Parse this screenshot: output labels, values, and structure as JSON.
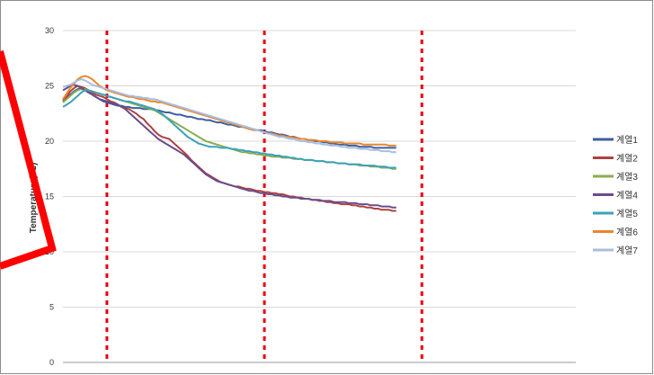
{
  "chart_data": {
    "type": "line",
    "title": "",
    "xlabel": "",
    "ylabel": "Temperature(℃)",
    "ylim": [
      0,
      30
    ],
    "yticks": [
      0,
      5,
      10,
      15,
      20,
      25,
      30
    ],
    "grid": "horizontal",
    "legend": "right",
    "x": [
      0,
      1,
      2,
      3,
      4,
      5,
      6,
      7,
      8,
      9,
      10,
      11,
      12,
      13,
      14,
      15,
      16,
      17,
      18,
      19,
      20,
      21,
      22,
      23,
      24,
      25,
      26,
      27,
      28,
      29,
      30,
      31,
      32,
      33,
      34,
      35,
      36,
      37,
      38,
      39,
      40,
      41,
      42,
      43,
      44,
      45,
      46,
      47,
      48,
      49,
      50,
      51,
      52,
      53,
      54,
      55,
      56,
      57,
      58,
      59,
      60,
      61,
      62,
      63,
      64,
      65,
      66,
      67,
      68,
      69,
      70,
      71,
      72,
      73,
      74,
      75,
      76,
      77,
      78,
      79,
      80,
      81,
      82,
      83,
      84,
      85,
      86,
      87,
      88,
      89,
      90,
      91
    ],
    "vertical_markers": [
      12,
      55,
      98
    ],
    "series": [
      {
        "name": "계열1",
        "color": "#3c5f9e",
        "values": [
          23.7,
          23.9,
          24.2,
          24.5,
          24.7,
          24.8,
          24.6,
          24.4,
          24.2,
          24.0,
          23.8,
          23.6,
          23.5,
          23.4,
          23.3,
          23.2,
          23.2,
          23.1,
          23.1,
          23.0,
          23.0,
          23.0,
          22.9,
          22.9,
          22.9,
          22.8,
          22.8,
          22.7,
          22.6,
          22.6,
          22.5,
          22.4,
          22.4,
          22.3,
          22.2,
          22.2,
          22.1,
          22.0,
          22.0,
          21.9,
          21.9,
          21.8,
          21.7,
          21.7,
          21.6,
          21.5,
          21.5,
          21.4,
          21.3,
          21.3,
          21.2,
          21.1,
          21.1,
          21.0,
          21.0,
          20.9,
          20.8,
          20.8,
          20.7,
          20.6,
          20.6,
          20.5,
          20.4,
          20.4,
          20.3,
          20.2,
          20.2,
          20.1,
          20.1,
          20.0,
          20.0,
          19.9,
          19.9,
          19.8,
          19.8,
          19.7,
          19.7,
          19.7,
          19.6,
          19.6,
          19.6,
          19.5,
          19.5,
          19.5,
          19.5,
          19.4,
          19.4,
          19.4,
          19.4,
          19.4,
          19.4,
          19.4
        ]
      },
      {
        "name": "계열2",
        "color": "#b0413e",
        "values": [
          23.6,
          24.0,
          24.5,
          24.8,
          25.0,
          24.9,
          24.8,
          24.6,
          24.4,
          24.2,
          24.1,
          24.0,
          23.8,
          23.6,
          23.5,
          23.3,
          23.1,
          23.0,
          22.9,
          22.7,
          22.5,
          22.2,
          22.0,
          21.6,
          21.3,
          20.9,
          20.6,
          20.4,
          20.3,
          20.2,
          19.9,
          19.6,
          19.3,
          19.0,
          18.7,
          18.3,
          18.0,
          17.7,
          17.4,
          17.1,
          16.9,
          16.7,
          16.5,
          16.3,
          16.2,
          16.1,
          16.0,
          15.9,
          15.9,
          15.8,
          15.7,
          15.7,
          15.6,
          15.5,
          15.5,
          15.4,
          15.4,
          15.3,
          15.3,
          15.2,
          15.2,
          15.1,
          15.0,
          15.0,
          14.9,
          14.9,
          14.8,
          14.8,
          14.7,
          14.7,
          14.6,
          14.6,
          14.5,
          14.5,
          14.4,
          14.4,
          14.3,
          14.3,
          14.3,
          14.2,
          14.2,
          14.1,
          14.1,
          14.0,
          14.0,
          13.9,
          13.9,
          13.8,
          13.8,
          13.8,
          13.7,
          13.7
        ]
      },
      {
        "name": "계열3",
        "color": "#8aad4f",
        "values": [
          23.5,
          23.8,
          24.1,
          24.4,
          24.6,
          24.7,
          24.7,
          24.6,
          24.5,
          24.4,
          24.3,
          24.2,
          24.1,
          24.0,
          23.9,
          23.8,
          23.7,
          23.6,
          23.5,
          23.4,
          23.3,
          23.2,
          23.1,
          23.0,
          22.9,
          22.8,
          22.6,
          22.4,
          22.2,
          22.0,
          21.8,
          21.6,
          21.4,
          21.2,
          21.0,
          20.8,
          20.6,
          20.4,
          20.2,
          20.0,
          19.9,
          19.8,
          19.7,
          19.6,
          19.5,
          19.4,
          19.3,
          19.2,
          19.1,
          19.0,
          19.0,
          18.9,
          18.9,
          18.8,
          18.8,
          18.7,
          18.7,
          18.6,
          18.6,
          18.6,
          18.5,
          18.5,
          18.5,
          18.4,
          18.4,
          18.4,
          18.3,
          18.3,
          18.3,
          18.2,
          18.2,
          18.2,
          18.1,
          18.1,
          18.1,
          18.0,
          18.0,
          18.0,
          17.9,
          17.9,
          17.9,
          17.8,
          17.8,
          17.8,
          17.7,
          17.7,
          17.7,
          17.6,
          17.6,
          17.6,
          17.5,
          17.5
        ]
      },
      {
        "name": "계열4",
        "color": "#6a4c8c",
        "values": [
          24.6,
          24.8,
          25.0,
          25.1,
          25.0,
          24.8,
          24.6,
          24.4,
          24.2,
          24.0,
          23.8,
          23.7,
          23.6,
          23.5,
          23.4,
          23.3,
          23.1,
          22.9,
          22.6,
          22.3,
          22.0,
          21.7,
          21.4,
          21.1,
          20.8,
          20.5,
          20.2,
          20.0,
          19.8,
          19.6,
          19.4,
          19.2,
          19.0,
          18.8,
          18.5,
          18.2,
          17.9,
          17.6,
          17.3,
          17.0,
          16.8,
          16.6,
          16.4,
          16.3,
          16.2,
          16.1,
          16.0,
          15.9,
          15.8,
          15.7,
          15.6,
          15.5,
          15.5,
          15.4,
          15.3,
          15.3,
          15.2,
          15.2,
          15.1,
          15.1,
          15.0,
          15.0,
          14.9,
          14.9,
          14.9,
          14.8,
          14.8,
          14.8,
          14.7,
          14.7,
          14.7,
          14.6,
          14.6,
          14.6,
          14.5,
          14.5,
          14.5,
          14.5,
          14.4,
          14.4,
          14.4,
          14.3,
          14.3,
          14.3,
          14.2,
          14.2,
          14.2,
          14.1,
          14.1,
          14.1,
          14.0,
          14.0
        ]
      },
      {
        "name": "계열5",
        "color": "#3ca2b8",
        "values": [
          23.1,
          23.3,
          23.5,
          23.8,
          24.1,
          24.4,
          24.6,
          24.6,
          24.5,
          24.4,
          24.3,
          24.2,
          24.1,
          24.0,
          23.9,
          23.8,
          23.7,
          23.6,
          23.6,
          23.5,
          23.4,
          23.3,
          23.2,
          23.1,
          23.0,
          22.9,
          22.7,
          22.5,
          22.2,
          21.9,
          21.6,
          21.3,
          21.0,
          20.7,
          20.4,
          20.2,
          20.0,
          19.8,
          19.7,
          19.6,
          19.5,
          19.5,
          19.5,
          19.4,
          19.4,
          19.4,
          19.3,
          19.3,
          19.2,
          19.2,
          19.1,
          19.1,
          19.0,
          19.0,
          18.9,
          18.9,
          18.8,
          18.8,
          18.7,
          18.7,
          18.6,
          18.6,
          18.5,
          18.5,
          18.4,
          18.4,
          18.3,
          18.3,
          18.3,
          18.2,
          18.2,
          18.2,
          18.1,
          18.1,
          18.1,
          18.0,
          18.0,
          18.0,
          17.9,
          17.9,
          17.9,
          17.9,
          17.8,
          17.8,
          17.8,
          17.8,
          17.7,
          17.7,
          17.7,
          17.6,
          17.6,
          17.6
        ]
      },
      {
        "name": "계열6",
        "color": "#e8872e",
        "values": [
          23.8,
          24.3,
          24.8,
          25.2,
          25.6,
          25.8,
          25.9,
          25.8,
          25.6,
          25.3,
          25.0,
          24.8,
          24.6,
          24.5,
          24.4,
          24.3,
          24.2,
          24.1,
          24.0,
          24.0,
          23.9,
          23.8,
          23.8,
          23.7,
          23.6,
          23.6,
          23.5,
          23.5,
          23.4,
          23.3,
          23.2,
          23.1,
          23.0,
          22.9,
          22.8,
          22.7,
          22.6,
          22.5,
          22.4,
          22.3,
          22.2,
          22.1,
          22.0,
          21.9,
          21.8,
          21.7,
          21.6,
          21.5,
          21.4,
          21.3,
          21.2,
          21.1,
          21.0,
          21.0,
          20.9,
          20.8,
          20.7,
          20.7,
          20.6,
          20.5,
          20.5,
          20.4,
          20.4,
          20.3,
          20.3,
          20.2,
          20.2,
          20.1,
          20.1,
          20.1,
          20.0,
          20.0,
          20.0,
          19.9,
          19.9,
          19.9,
          19.9,
          19.8,
          19.8,
          19.8,
          19.8,
          19.8,
          19.7,
          19.7,
          19.7,
          19.7,
          19.7,
          19.7,
          19.7,
          19.6,
          19.6,
          19.6
        ]
      },
      {
        "name": "계열7",
        "color": "#a9bde0",
        "values": [
          24.9,
          25.0,
          25.1,
          25.3,
          25.5,
          25.6,
          25.5,
          25.3,
          25.1,
          25.0,
          24.9,
          24.8,
          24.7,
          24.6,
          24.5,
          24.4,
          24.3,
          24.2,
          24.1,
          24.1,
          24.0,
          24.0,
          23.9,
          23.9,
          23.8,
          23.8,
          23.7,
          23.6,
          23.5,
          23.4,
          23.3,
          23.2,
          23.1,
          23.0,
          22.9,
          22.8,
          22.7,
          22.6,
          22.5,
          22.4,
          22.3,
          22.2,
          22.1,
          22.0,
          21.9,
          21.8,
          21.7,
          21.6,
          21.5,
          21.4,
          21.3,
          21.2,
          21.1,
          21.0,
          20.9,
          20.8,
          20.7,
          20.6,
          20.5,
          20.4,
          20.4,
          20.3,
          20.2,
          20.2,
          20.1,
          20.0,
          20.0,
          19.9,
          19.9,
          19.8,
          19.8,
          19.7,
          19.7,
          19.6,
          19.6,
          19.6,
          19.5,
          19.5,
          19.4,
          19.4,
          19.4,
          19.3,
          19.3,
          19.3,
          19.2,
          19.2,
          19.2,
          19.1,
          19.1,
          19.1,
          19.0,
          19.0
        ]
      }
    ]
  }
}
